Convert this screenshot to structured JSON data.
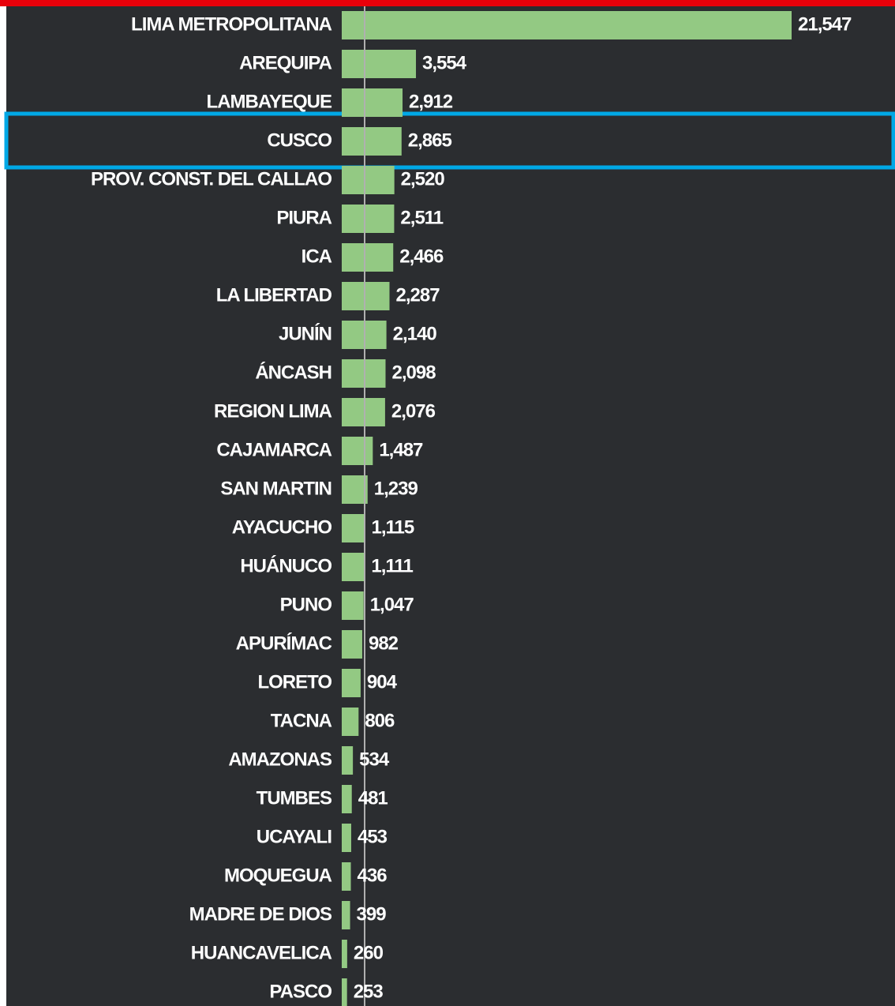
{
  "chart_data": {
    "type": "bar",
    "orientation": "horizontal",
    "categories": [
      "LIMA METROPOLITANA",
      "AREQUIPA",
      "LAMBAYEQUE",
      "CUSCO",
      "PROV. CONST. DEL CALLAO",
      "PIURA",
      "ICA",
      "LA LIBERTAD",
      "JUNÍN",
      "ÁNCASH",
      "REGION LIMA",
      "CAJAMARCA",
      "SAN MARTIN",
      "AYACUCHO",
      "HUÁNUCO",
      "PUNO",
      "APURÍMAC",
      "LORETO",
      "TACNA",
      "AMAZONAS",
      "TUMBES",
      "UCAYALI",
      "MOQUEGUA",
      "MADRE DE DIOS",
      "HUANCAVELICA",
      "PASCO"
    ],
    "values": [
      21547,
      3554,
      2912,
      2865,
      2520,
      2511,
      2466,
      2287,
      2140,
      2098,
      2076,
      1487,
      1239,
      1115,
      1111,
      1047,
      982,
      904,
      806,
      534,
      481,
      453,
      436,
      399,
      260,
      253
    ],
    "value_labels": [
      "21,547",
      "3,554",
      "2,912",
      "2,865",
      "2,520",
      "2,511",
      "2,466",
      "2,287",
      "2,140",
      "2,098",
      "2,076",
      "1,487",
      "1,239",
      "1,115",
      "1,111",
      "1,047",
      "982",
      "904",
      "806",
      "534",
      "481",
      "453",
      "436",
      "399",
      "260",
      "253"
    ],
    "color": "#93c983"
  }
}
